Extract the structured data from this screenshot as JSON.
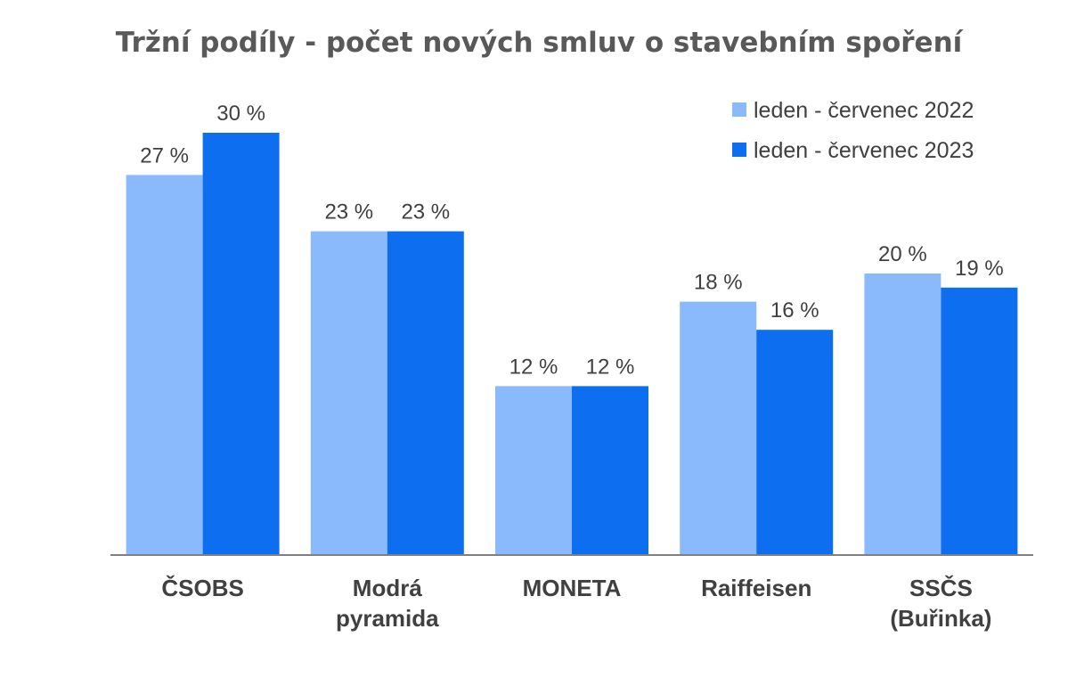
{
  "chart_data": {
    "type": "bar",
    "title": "Tržní podíly - počet nových smluv o stavebním spoření",
    "categories": [
      [
        "ČSOBS"
      ],
      [
        "Modrá",
        "pyramida"
      ],
      [
        "MONETA"
      ],
      [
        "Raiffeisen"
      ],
      [
        "SSČS",
        "(Buřinka)"
      ]
    ],
    "series": [
      {
        "name": "leden - červenec 2022",
        "color": "#8ab9fc",
        "values": [
          27,
          23,
          12,
          18,
          20
        ],
        "labels": [
          "27 %",
          "23 %",
          "12 %",
          "18 %",
          "20 %"
        ]
      },
      {
        "name": "leden - červenec 2023",
        "color": "#0d6ef0",
        "values": [
          30,
          23,
          12,
          16,
          19
        ],
        "labels": [
          "30 %",
          "23 %",
          "12 %",
          "16 %",
          "19 %"
        ]
      }
    ],
    "ylim": [
      0,
      30
    ],
    "grid": false,
    "legend_position": "top-right",
    "axis_color": "#7f7f7f"
  }
}
